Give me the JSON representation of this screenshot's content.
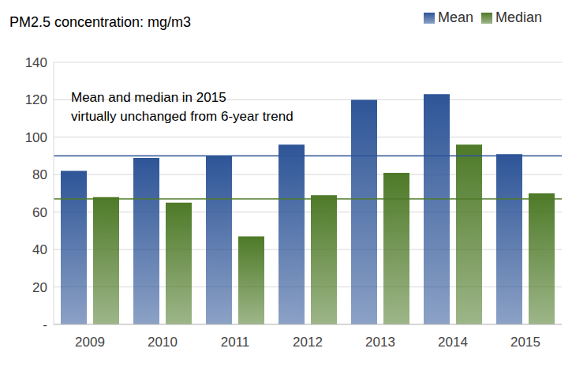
{
  "chart_data": {
    "type": "bar",
    "title": "PM2.5 concentration: mg/m3",
    "annotation": [
      "Mean and median in 2015",
      "virtually unchanged from 6-year trend"
    ],
    "categories": [
      "2009",
      "2010",
      "2011",
      "2012",
      "2013",
      "2014",
      "2015"
    ],
    "series": [
      {
        "name": "Mean",
        "color": "#2e5597",
        "values": [
          82,
          89,
          90,
          96,
          120,
          123,
          91
        ],
        "trend": 90
      },
      {
        "name": "Median",
        "color": "#4e7a28",
        "values": [
          68,
          65,
          47,
          69,
          81,
          96,
          70
        ],
        "trend": 67
      }
    ],
    "ylim": [
      0,
      140
    ],
    "yticks": [
      {
        "value": 0,
        "label": "-"
      },
      20,
      40,
      60,
      80,
      100,
      120,
      140
    ],
    "grid": true,
    "legend": "top-right"
  }
}
